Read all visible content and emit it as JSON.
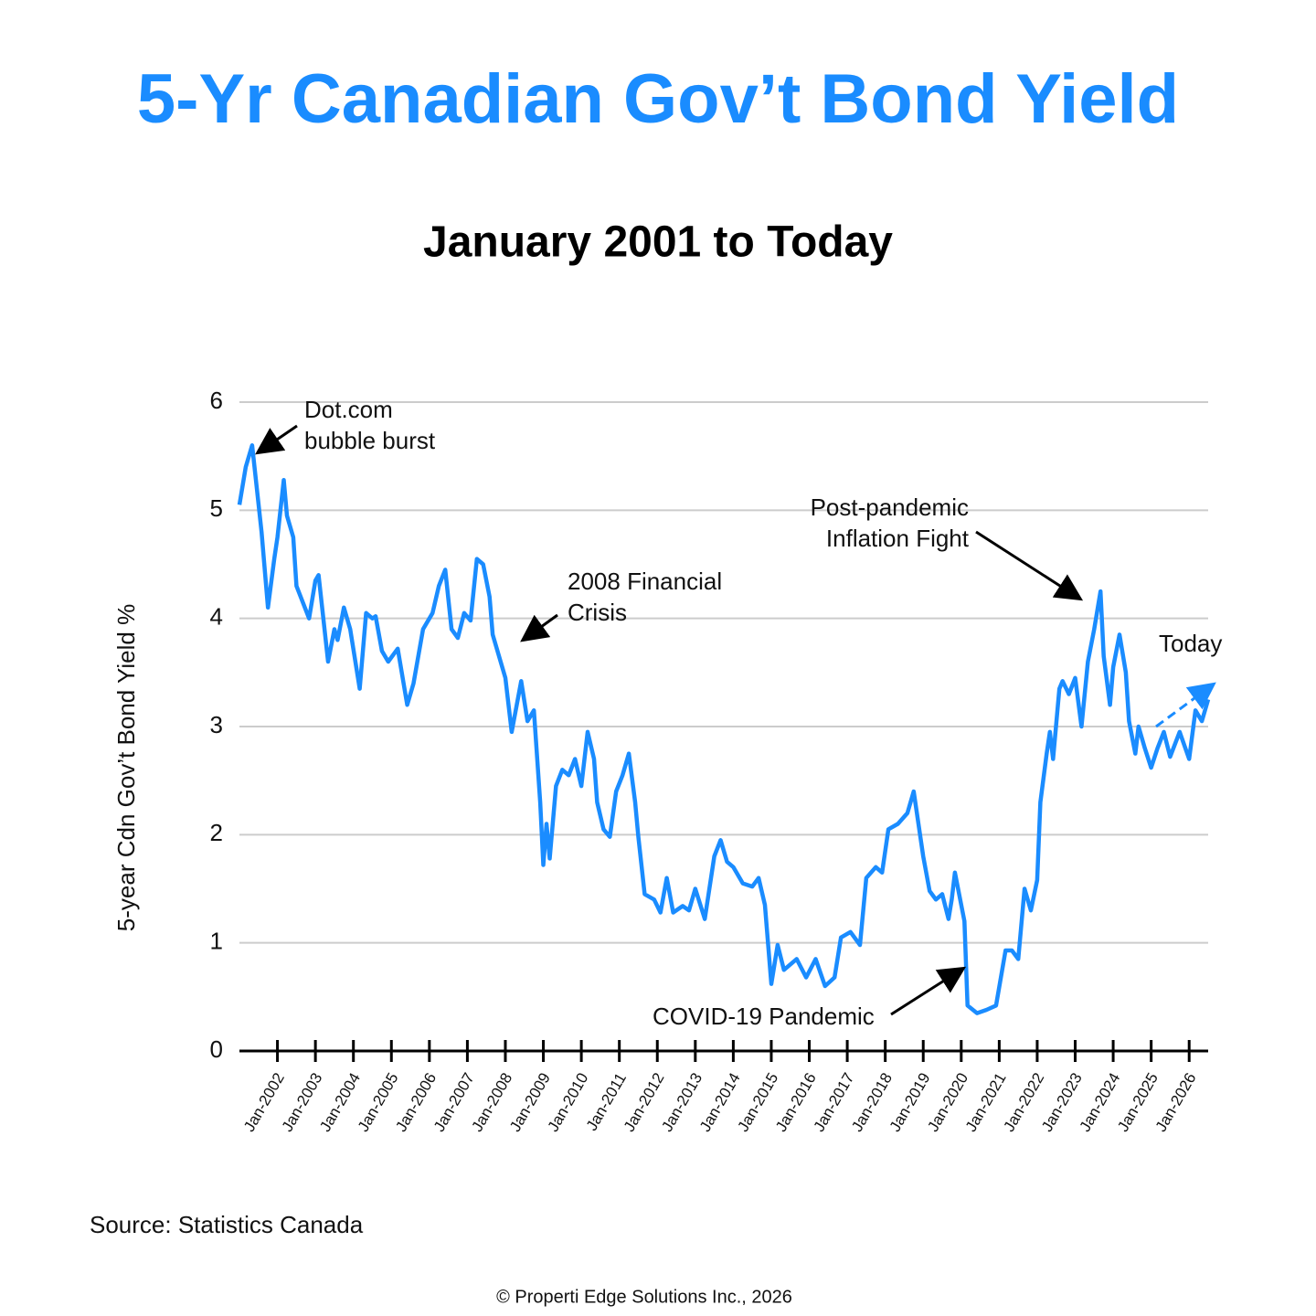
{
  "chart_data": {
    "type": "line",
    "title": "5-Yr Canadian Gov’t Bond Yield",
    "subtitle": "January 2001 to Today",
    "y_axis_label": "5-year Cdn Gov’t Bond Yield %",
    "source": "Source: Statistics Canada",
    "copyright": "© Properti Edge Solutions Inc., 2026",
    "annotations": [
      {
        "lines": [
          "Dot.com",
          "bubble burst"
        ]
      },
      {
        "lines": [
          "2008 Financial",
          "Crisis"
        ]
      },
      {
        "lines": [
          "Post-pandemic",
          "Inflation Fight"
        ]
      },
      {
        "lines": [
          "Today"
        ]
      },
      {
        "lines": [
          "COVID-19 Pandemic"
        ]
      }
    ],
    "color": "#1a8cff",
    "grid": true,
    "xlim": [
      "2001-01",
      "2026-07"
    ],
    "ylim": [
      0,
      6
    ],
    "yticks": [
      0,
      1,
      2,
      3,
      4,
      5,
      6
    ],
    "xticks": [
      {
        "value": "2002-01",
        "label": "Jan-2002"
      },
      {
        "value": "2003-01",
        "label": "Jan-2003"
      },
      {
        "value": "2004-01",
        "label": "Jan-2004"
      },
      {
        "value": "2005-01",
        "label": "Jan-2005"
      },
      {
        "value": "2006-01",
        "label": "Jan-2006"
      },
      {
        "value": "2007-01",
        "label": "Jan-2007"
      },
      {
        "value": "2008-01",
        "label": "Jan-2008"
      },
      {
        "value": "2009-01",
        "label": "Jan-2009"
      },
      {
        "value": "2010-01",
        "label": "Jan-2010"
      },
      {
        "value": "2011-01",
        "label": "Jan-2011"
      },
      {
        "value": "2012-01",
        "label": "Jan-2012"
      },
      {
        "value": "2013-01",
        "label": "Jan-2013"
      },
      {
        "value": "2014-01",
        "label": "Jan-2014"
      },
      {
        "value": "2015-01",
        "label": "Jan-2015"
      },
      {
        "value": "2016-01",
        "label": "Jan-2016"
      },
      {
        "value": "2017-01",
        "label": "Jan-2017"
      },
      {
        "value": "2018-01",
        "label": "Jan-2018"
      },
      {
        "value": "2019-01",
        "label": "Jan-2019"
      },
      {
        "value": "2020-01",
        "label": "Jan-2020"
      },
      {
        "value": "2021-01",
        "label": "Jan-2021"
      },
      {
        "value": "2022-01",
        "label": "Jan-2022"
      },
      {
        "value": "2023-01",
        "label": "Jan-2023"
      },
      {
        "value": "2024-01",
        "label": "Jan-2024"
      },
      {
        "value": "2025-01",
        "label": "Jan-2025"
      },
      {
        "value": "2026-01",
        "label": "Jan-2026"
      }
    ],
    "x": [
      "2001-01",
      "2001-03",
      "2001-05",
      "2001-08",
      "2001-10",
      "2001-12",
      "2002-01",
      "2002-03",
      "2002-04",
      "2002-06",
      "2002-07",
      "2002-09",
      "2002-11",
      "2003-01",
      "2003-02",
      "2003-05",
      "2003-07",
      "2003-08",
      "2003-10",
      "2003-12",
      "2004-03",
      "2004-05",
      "2004-07",
      "2004-08",
      "2004-10",
      "2004-12",
      "2005-03",
      "2005-06",
      "2005-08",
      "2005-11",
      "2006-02",
      "2006-04",
      "2006-06",
      "2006-08",
      "2006-10",
      "2006-12",
      "2007-02",
      "2007-04",
      "2007-06",
      "2007-08",
      "2007-09",
      "2008-01",
      "2008-03",
      "2008-06",
      "2008-08",
      "2008-10",
      "2008-12",
      "2009-01",
      "2009-02",
      "2009-03",
      "2009-05",
      "2009-07",
      "2009-09",
      "2009-11",
      "2010-01",
      "2010-03",
      "2010-05",
      "2010-06",
      "2010-08",
      "2010-10",
      "2010-12",
      "2011-02",
      "2011-04",
      "2011-06",
      "2011-07",
      "2011-09",
      "2011-12",
      "2012-02",
      "2012-04",
      "2012-06",
      "2012-09",
      "2012-11",
      "2013-01",
      "2013-04",
      "2013-07",
      "2013-09",
      "2013-11",
      "2014-01",
      "2014-04",
      "2014-07",
      "2014-09",
      "2014-11",
      "2015-01",
      "2015-03",
      "2015-05",
      "2015-09",
      "2015-12",
      "2016-03",
      "2016-06",
      "2016-09",
      "2016-11",
      "2017-02",
      "2017-05",
      "2017-07",
      "2017-10",
      "2017-12",
      "2018-02",
      "2018-05",
      "2018-08",
      "2018-10",
      "2019-01",
      "2019-03",
      "2019-05",
      "2019-07",
      "2019-09",
      "2019-10",
      "2019-11",
      "2020-02",
      "2020-03",
      "2020-06",
      "2020-09",
      "2020-12",
      "2021-03",
      "2021-05",
      "2021-07",
      "2021-09",
      "2021-11",
      "2022-01",
      "2022-02",
      "2022-04",
      "2022-05",
      "2022-06",
      "2022-08",
      "2022-09",
      "2022-11",
      "2023-01",
      "2023-03",
      "2023-05",
      "2023-07",
      "2023-09",
      "2023-10",
      "2023-12",
      "2024-01",
      "2024-03",
      "2024-05",
      "2024-06",
      "2024-08",
      "2024-09",
      "2024-11",
      "2025-01",
      "2025-03",
      "2025-05",
      "2025-07",
      "2025-10",
      "2026-01",
      "2026-03",
      "2026-05",
      "2026-07"
    ],
    "values": [
      5.05,
      5.4,
      5.6,
      4.8,
      4.1,
      4.55,
      4.75,
      5.28,
      4.95,
      4.75,
      4.3,
      4.15,
      4.0,
      4.35,
      4.4,
      3.6,
      3.9,
      3.8,
      4.1,
      3.9,
      3.35,
      4.05,
      4.0,
      4.02,
      3.7,
      3.6,
      3.72,
      3.2,
      3.4,
      3.9,
      4.05,
      4.3,
      4.45,
      3.9,
      3.82,
      4.05,
      3.98,
      4.55,
      4.5,
      4.2,
      3.85,
      3.45,
      2.95,
      3.42,
      3.05,
      3.15,
      2.3,
      1.72,
      2.1,
      1.78,
      2.45,
      2.6,
      2.55,
      2.7,
      2.45,
      2.95,
      2.7,
      2.3,
      2.05,
      1.98,
      2.4,
      2.55,
      2.75,
      2.3,
      1.98,
      1.45,
      1.4,
      1.28,
      1.6,
      1.28,
      1.34,
      1.3,
      1.5,
      1.22,
      1.8,
      1.95,
      1.75,
      1.7,
      1.55,
      1.52,
      1.6,
      1.35,
      0.62,
      0.98,
      0.75,
      0.85,
      0.68,
      0.85,
      0.6,
      0.68,
      1.05,
      1.1,
      0.98,
      1.6,
      1.7,
      1.65,
      2.05,
      2.1,
      2.2,
      2.4,
      1.8,
      1.48,
      1.4,
      1.45,
      1.22,
      1.4,
      1.65,
      1.2,
      0.42,
      0.35,
      0.38,
      0.42,
      0.93,
      0.93,
      0.85,
      1.5,
      1.3,
      1.58,
      2.3,
      2.75,
      2.95,
      2.7,
      3.35,
      3.42,
      3.3,
      3.45,
      3.0,
      3.6,
      3.9,
      4.25,
      3.65,
      3.2,
      3.55,
      3.85,
      3.5,
      3.05,
      2.75,
      3.0,
      2.8,
      2.62,
      2.8,
      2.95,
      2.72,
      2.95,
      2.7,
      3.15,
      3.05,
      3.25
    ]
  }
}
